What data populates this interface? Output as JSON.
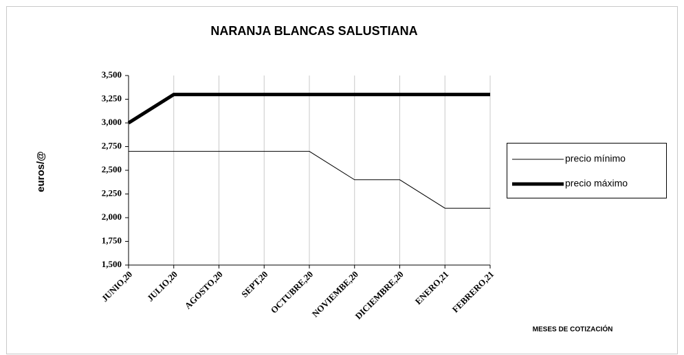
{
  "chart_data": {
    "type": "line",
    "title": "NARANJA  BLANCAS SALUSTIANA",
    "y_label": "euros/@",
    "x_label": "MESES DE COTIZACIÓN",
    "categories": [
      "JUNIO,20",
      "JULIO,20",
      "AGOSTO,20",
      "SEPT,20",
      "OCTUBRE,20",
      "NOVIEMBE,20",
      "DICIEMBRE,20",
      "ENERO,21",
      "FEBRERO,21"
    ],
    "series": [
      {
        "name": "precio mínimo",
        "color": "#000000",
        "values": [
          2.7,
          2.7,
          2.7,
          2.7,
          2.7,
          2.4,
          2.4,
          2.1,
          2.1
        ]
      },
      {
        "name": "precio máximo",
        "color": "#000000",
        "values": [
          3.0,
          3.3,
          3.3,
          3.3,
          3.3,
          3.3,
          3.3,
          3.3,
          3.3
        ]
      }
    ],
    "ylim": [
      1.5,
      3.5
    ],
    "yticks": [
      {
        "value": 1.5,
        "label": "1,500"
      },
      {
        "value": 1.75,
        "label": "1,750"
      },
      {
        "value": 2.0,
        "label": "2,000"
      },
      {
        "value": 2.25,
        "label": "2,250"
      },
      {
        "value": 2.5,
        "label": "2,500"
      },
      {
        "value": 2.75,
        "label": "2,750"
      },
      {
        "value": 3.0,
        "label": "3,000"
      },
      {
        "value": 3.25,
        "label": "3,250"
      },
      {
        "value": 3.5,
        "label": "3,500"
      }
    ],
    "grid": "x",
    "legend": "right"
  }
}
